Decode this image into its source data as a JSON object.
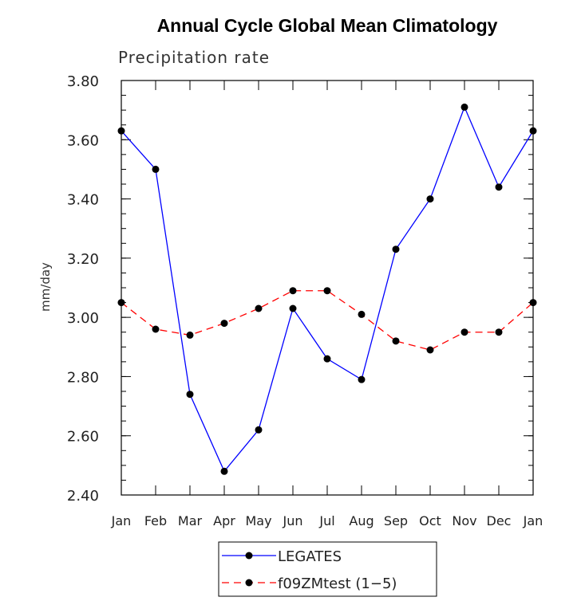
{
  "chart_data": {
    "type": "line",
    "title": "Annual Cycle Global Mean Climatology",
    "subtitle": "Precipitation rate",
    "xlabel": "",
    "ylabel": "mm/day",
    "categories": [
      "Jan",
      "Feb",
      "Mar",
      "Apr",
      "May",
      "Jun",
      "Jul",
      "Aug",
      "Sep",
      "Oct",
      "Nov",
      "Dec",
      "Jan"
    ],
    "ylim": [
      2.4,
      3.8
    ],
    "yticks": [
      "2.40",
      "2.60",
      "2.80",
      "3.00",
      "3.20",
      "3.40",
      "3.60",
      "3.80"
    ],
    "grid": false,
    "legend_position": "bottom-center",
    "series": [
      {
        "name": "LEGATES",
        "color": "#0000ff",
        "style": "solid",
        "marker": "filled-circle",
        "values": [
          3.63,
          3.5,
          2.74,
          2.48,
          2.62,
          3.03,
          2.86,
          2.79,
          3.23,
          3.4,
          3.71,
          3.44,
          3.63
        ]
      },
      {
        "name": "f09ZMtest (1−5)",
        "color": "#ff0000",
        "style": "dashed",
        "marker": "filled-circle",
        "values": [
          3.05,
          2.96,
          2.94,
          2.98,
          3.03,
          3.09,
          3.09,
          3.01,
          2.92,
          2.89,
          2.95,
          2.95,
          3.05
        ]
      }
    ]
  }
}
